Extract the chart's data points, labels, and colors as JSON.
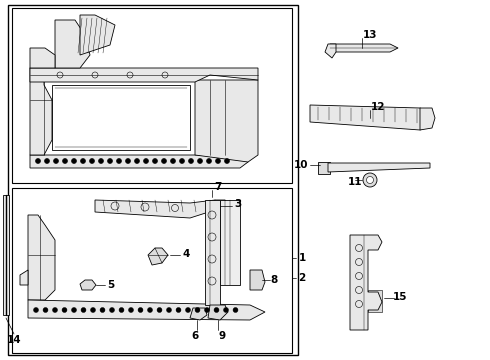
{
  "bg_color": "#ffffff",
  "line_color": "#000000",
  "lw_main": 0.8,
  "lw_thin": 0.5,
  "lw_thick": 1.0
}
